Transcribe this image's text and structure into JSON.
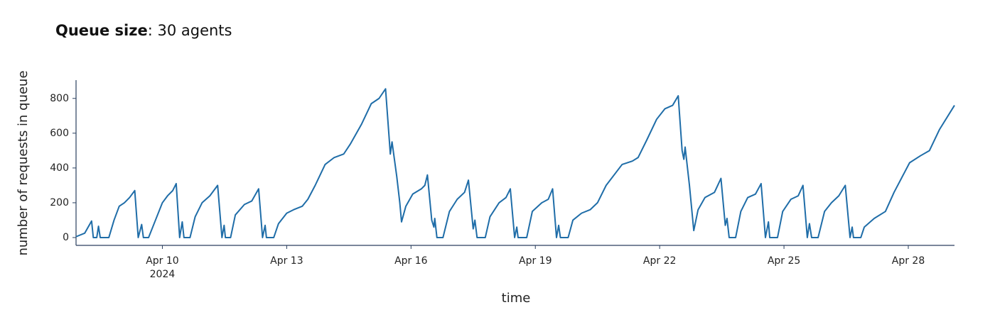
{
  "chart_data": {
    "type": "line",
    "title_bold": "Queue size",
    "title_rest": ": 30 agents",
    "xlabel": "time",
    "ylabel": "number of requests in queue",
    "color": "#1f6da8",
    "xlim": [
      "2024-04-07T22:00",
      "2024-04-29T02:45"
    ],
    "xticks": [
      {
        "value": "2024-04-10T00:00",
        "label": "Apr 10\n2024"
      },
      {
        "value": "2024-04-13T00:00",
        "label": "Apr 13"
      },
      {
        "value": "2024-04-16T00:00",
        "label": "Apr 16"
      },
      {
        "value": "2024-04-19T00:00",
        "label": "Apr 19"
      },
      {
        "value": "2024-04-22T00:00",
        "label": "Apr 22"
      },
      {
        "value": "2024-04-25T00:00",
        "label": "Apr 25"
      },
      {
        "value": "2024-04-28T00:00",
        "label": "Apr 28"
      }
    ],
    "ylim": [
      -45,
      905
    ],
    "yticks": [
      0,
      200,
      400,
      600,
      800
    ],
    "x": [
      "2024-04-07T22:00",
      "2024-04-08T03:00",
      "2024-04-08T07:00",
      "2024-04-08T08:00",
      "2024-04-08T10:00",
      "2024-04-08T11:00",
      "2024-04-08T12:00",
      "2024-04-08T17:00",
      "2024-04-08T20:00",
      "2024-04-08T23:00",
      "2024-04-09T02:00",
      "2024-04-09T05:00",
      "2024-04-09T08:00",
      "2024-04-09T10:00",
      "2024-04-09T12:00",
      "2024-04-09T13:00",
      "2024-04-09T16:00",
      "2024-04-09T20:00",
      "2024-04-10T00:00",
      "2024-04-10T03:00",
      "2024-04-10T06:00",
      "2024-04-10T08:00",
      "2024-04-10T10:00",
      "2024-04-10T11:30",
      "2024-04-10T12:30",
      "2024-04-10T16:00",
      "2024-04-10T19:00",
      "2024-04-10T23:00",
      "2024-04-11T03:30",
      "2024-04-11T08:00",
      "2024-04-11T10:30",
      "2024-04-11T11:45",
      "2024-04-11T12:30",
      "2024-04-11T15:30",
      "2024-04-11T18:15",
      "2024-04-11T23:30",
      "2024-04-12T03:45",
      "2024-04-12T07:45",
      "2024-04-12T10:00",
      "2024-04-12T11:30",
      "2024-04-12T12:15",
      "2024-04-12T16:30",
      "2024-04-12T19:15",
      "2024-04-13T00:00",
      "2024-04-13T04:00",
      "2024-04-13T09:00",
      "2024-04-13T12:15",
      "2024-04-13T16:30",
      "2024-04-13T22:15",
      "2024-04-14T03:30",
      "2024-04-14T09:00",
      "2024-04-14T13:00",
      "2024-04-14T19:15",
      "2024-04-15T01:00",
      "2024-04-15T05:30",
      "2024-04-15T09:15",
      "2024-04-15T11:30",
      "2024-04-15T12:00",
      "2024-04-15T13:00",
      "2024-04-15T15:45",
      "2024-04-15T17:30",
      "2024-04-15T18:30",
      "2024-04-15T21:00",
      "2024-04-16T01:00",
      "2024-04-16T06:00",
      "2024-04-16T08:00",
      "2024-04-16T09:30",
      "2024-04-16T12:00",
      "2024-04-16T13:15",
      "2024-04-16T13:45",
      "2024-04-16T15:00",
      "2024-04-16T18:30",
      "2024-04-16T22:15",
      "2024-04-17T02:45",
      "2024-04-17T07:00",
      "2024-04-17T09:15",
      "2024-04-17T12:00",
      "2024-04-17T13:00",
      "2024-04-17T14:15",
      "2024-04-17T19:00",
      "2024-04-17T21:45",
      "2024-04-18T03:00",
      "2024-04-18T07:00",
      "2024-04-18T09:30",
      "2024-04-18T12:00",
      "2024-04-18T13:15",
      "2024-04-18T14:00",
      "2024-04-18T19:00",
      "2024-04-18T22:15",
      "2024-04-19T03:45",
      "2024-04-19T07:30",
      "2024-04-19T10:00",
      "2024-04-19T12:15",
      "2024-04-19T13:30",
      "2024-04-19T14:30",
      "2024-04-19T19:00",
      "2024-04-19T21:45",
      "2024-04-20T02:45",
      "2024-04-20T07:45",
      "2024-04-20T12:00",
      "2024-04-20T17:00",
      "2024-04-21T02:15",
      "2024-04-21T08:15",
      "2024-04-21T11:30",
      "2024-04-21T16:30",
      "2024-04-21T22:15",
      "2024-04-22T03:00",
      "2024-04-22T07:30",
      "2024-04-22T10:45",
      "2024-04-22T13:00",
      "2024-04-22T14:00",
      "2024-04-22T14:45",
      "2024-04-22T17:15",
      "2024-04-22T19:45",
      "2024-04-22T22:15",
      "2024-04-23T02:15",
      "2024-04-23T07:45",
      "2024-04-23T11:30",
      "2024-04-23T14:00",
      "2024-04-23T15:00",
      "2024-04-23T16:15",
      "2024-04-23T20:00",
      "2024-04-23T23:00",
      "2024-04-24T03:00",
      "2024-04-24T07:30",
      "2024-04-24T10:45",
      "2024-04-24T13:15",
      "2024-04-24T15:00",
      "2024-04-24T15:45",
      "2024-04-24T20:15",
      "2024-04-24T23:15",
      "2024-04-25T04:00",
      "2024-04-25T08:15",
      "2024-04-25T11:00",
      "2024-04-25T13:30",
      "2024-04-25T14:45",
      "2024-04-25T16:00",
      "2024-04-25T19:45",
      "2024-04-25T23:30",
      "2024-04-26T03:30",
      "2024-04-26T07:45",
      "2024-04-26T11:30",
      "2024-04-26T14:15",
      "2024-04-26T15:30",
      "2024-04-26T16:15",
      "2024-04-26T20:30",
      "2024-04-26T22:30",
      "2024-04-27T04:15",
      "2024-04-27T10:45",
      "2024-04-27T15:45",
      "2024-04-28T00:45",
      "2024-04-28T07:00",
      "2024-04-28T12:15",
      "2024-04-28T18:00",
      "2024-04-29T02:45"
    ],
    "values": [
      5,
      25,
      95,
      0,
      0,
      65,
      0,
      0,
      100,
      180,
      200,
      230,
      270,
      0,
      75,
      0,
      0,
      100,
      200,
      240,
      270,
      310,
      0,
      90,
      0,
      0,
      120,
      200,
      240,
      300,
      0,
      70,
      0,
      0,
      130,
      190,
      210,
      280,
      0,
      70,
      0,
      0,
      80,
      140,
      160,
      180,
      220,
      300,
      420,
      460,
      480,
      540,
      650,
      770,
      800,
      855,
      550,
      480,
      550,
      350,
      200,
      90,
      180,
      250,
      280,
      300,
      360,
      100,
      60,
      110,
      0,
      0,
      150,
      220,
      260,
      330,
      50,
      100,
      0,
      0,
      120,
      200,
      230,
      280,
      0,
      60,
      0,
      0,
      150,
      200,
      220,
      280,
      0,
      70,
      0,
      0,
      100,
      140,
      160,
      200,
      300,
      420,
      440,
      460,
      560,
      680,
      740,
      760,
      815,
      500,
      450,
      520,
      300,
      40,
      160,
      230,
      260,
      340,
      70,
      110,
      0,
      0,
      150,
      230,
      250,
      310,
      0,
      90,
      0,
      0,
      150,
      220,
      240,
      300,
      0,
      80,
      0,
      0,
      150,
      200,
      240,
      300,
      0,
      60,
      0,
      0,
      60,
      110,
      150,
      260,
      430,
      470,
      500,
      620,
      760
    ]
  }
}
